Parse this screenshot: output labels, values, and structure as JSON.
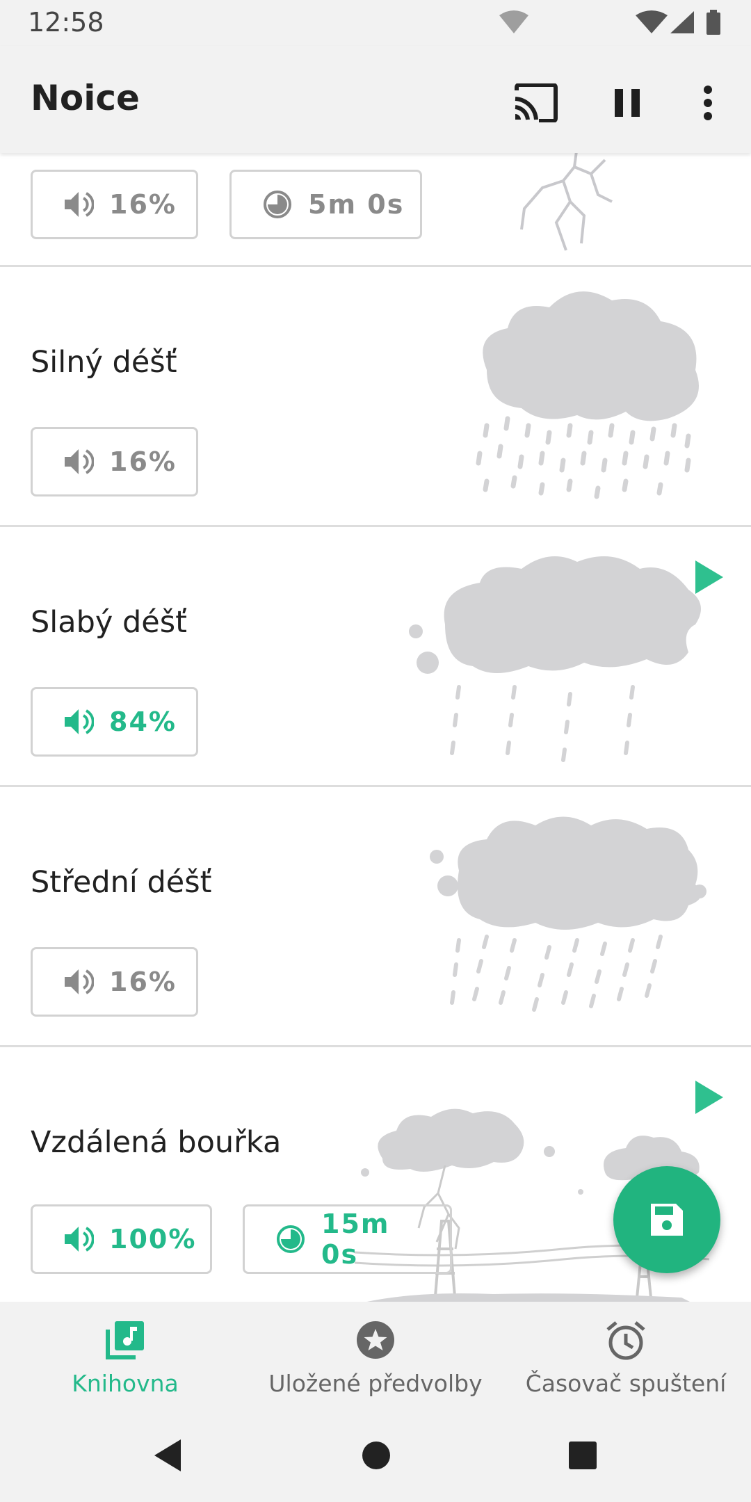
{
  "status_bar": {
    "time": "12:58"
  },
  "app_bar": {
    "title": "Noice",
    "icons": [
      "cast-icon",
      "pause-icon",
      "more-vert-icon"
    ]
  },
  "sounds": [
    {
      "name": "",
      "volume": "16%",
      "timer": "5m 0s",
      "active": false,
      "playing": false,
      "art": "lightning-icon"
    },
    {
      "name": "Silný déšť",
      "volume": "16%",
      "active": false,
      "playing": false,
      "art": "heavy-rain-cloud-icon"
    },
    {
      "name": "Slabý déšť",
      "volume": "84%",
      "active": true,
      "playing": true,
      "art": "light-rain-cloud-icon"
    },
    {
      "name": "Střední déšť",
      "volume": "16%",
      "active": false,
      "playing": false,
      "art": "moderate-rain-cloud-icon"
    },
    {
      "name": "Vzdálená bouřka",
      "volume": "100%",
      "timer": "15m 0s",
      "active": true,
      "playing": true,
      "art": "distant-storm-icon"
    }
  ],
  "fab": {
    "icon": "save-icon"
  },
  "bottom_nav": [
    {
      "label": "Knihovna",
      "icon": "library-music-icon",
      "active": true
    },
    {
      "label": "Uložené předvolby",
      "icon": "star-icon",
      "active": false
    },
    {
      "label": "Časovač spuštení",
      "icon": "alarm-clock-icon",
      "active": false
    }
  ],
  "colors": {
    "accent": "#23b98a",
    "fab": "#21b47f",
    "inactive": "#8a8a8a",
    "art": "#d3d3d5"
  }
}
